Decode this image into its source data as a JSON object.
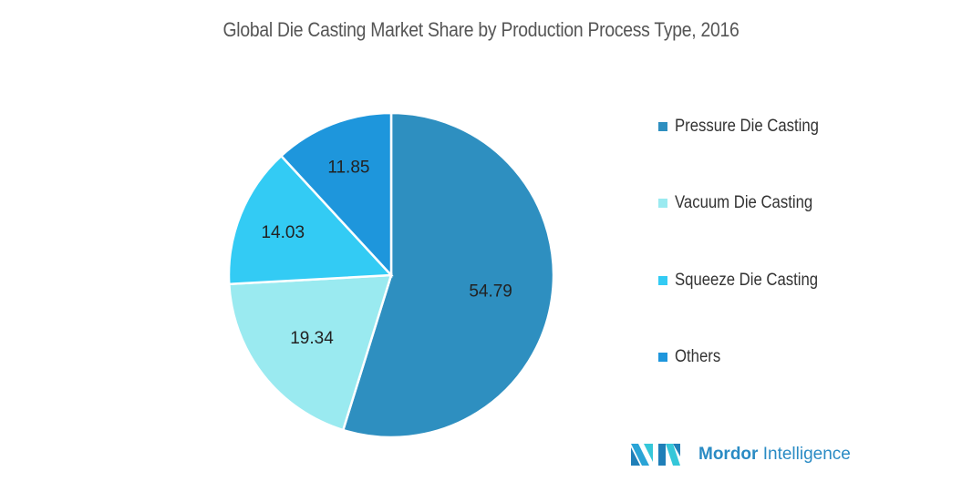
{
  "chart_data": {
    "type": "pie",
    "title": "Global Die Casting Market Share by Production Process Type, 2016",
    "categories": [
      "Pressure Die Casting",
      "Vacuum Die Casting",
      "Squeeze Die Casting",
      "Others"
    ],
    "values": [
      54.79,
      19.34,
      14.03,
      11.85
    ],
    "value_labels": [
      "54.79",
      "19.34",
      "14.03",
      "11.85"
    ],
    "colors": [
      "#2e8fc0",
      "#9aeaf0",
      "#33cbf4",
      "#1e96dc"
    ],
    "legend_position": "right",
    "start_angle": "top, clockwise"
  },
  "branding": {
    "logo_bold": "Mordor",
    "logo_light": "Intelligence"
  }
}
